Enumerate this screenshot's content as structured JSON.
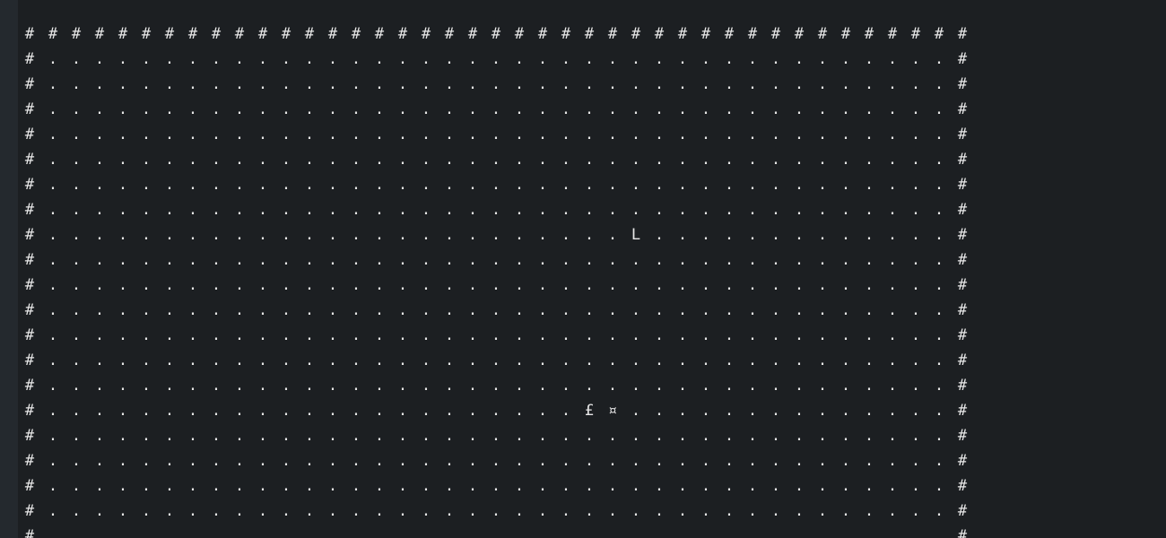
{
  "game": {
    "map": {
      "wall_glyph": "#",
      "floor_glyph": ".",
      "width": 41,
      "rows_visible": 21,
      "entities": [
        {
          "glyph": "L",
          "row": 8,
          "col": 26,
          "name": "entity-L"
        },
        {
          "glyph": "£",
          "row": 15,
          "col": 24,
          "name": "entity-pound"
        },
        {
          "glyph": "¤",
          "row": 15,
          "col": 25,
          "name": "entity-currency"
        }
      ]
    }
  }
}
